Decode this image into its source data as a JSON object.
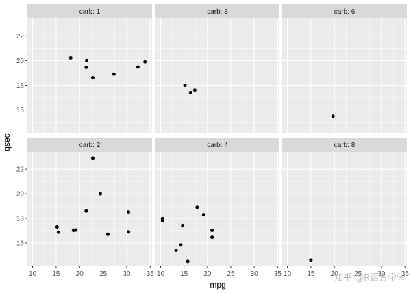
{
  "chart_data": {
    "type": "scatter",
    "facet_variable": "carb",
    "xlabel": "mpg",
    "ylabel": "qsec",
    "xlim": [
      8.9,
      35.4
    ],
    "ylim": [
      14.1,
      23.4
    ],
    "x_ticks": [
      10,
      15,
      20,
      25,
      30,
      35
    ],
    "y_ticks": [
      16,
      18,
      20,
      22
    ],
    "grid": true,
    "facets": [
      {
        "label": "carb: 1",
        "points": [
          {
            "x": 18.1,
            "y": 20.22
          },
          {
            "x": 21.4,
            "y": 19.44
          },
          {
            "x": 21.5,
            "y": 20.01
          },
          {
            "x": 22.8,
            "y": 18.61
          },
          {
            "x": 27.3,
            "y": 18.9
          },
          {
            "x": 32.4,
            "y": 19.47
          },
          {
            "x": 33.9,
            "y": 19.9
          }
        ]
      },
      {
        "label": "carb: 3",
        "points": [
          {
            "x": 15.2,
            "y": 18.0
          },
          {
            "x": 16.4,
            "y": 17.4
          },
          {
            "x": 17.3,
            "y": 17.6
          }
        ]
      },
      {
        "label": "carb: 6",
        "points": [
          {
            "x": 19.7,
            "y": 15.5
          }
        ]
      },
      {
        "label": "carb: 2",
        "points": [
          {
            "x": 15.2,
            "y": 17.3
          },
          {
            "x": 15.5,
            "y": 16.87
          },
          {
            "x": 18.7,
            "y": 17.02
          },
          {
            "x": 19.2,
            "y": 17.05
          },
          {
            "x": 21.4,
            "y": 18.6
          },
          {
            "x": 22.8,
            "y": 22.9
          },
          {
            "x": 24.4,
            "y": 20.0
          },
          {
            "x": 26.0,
            "y": 16.7
          },
          {
            "x": 30.4,
            "y": 16.9
          },
          {
            "x": 30.4,
            "y": 18.52
          }
        ]
      },
      {
        "label": "carb: 4",
        "points": [
          {
            "x": 10.4,
            "y": 17.98
          },
          {
            "x": 10.4,
            "y": 17.82
          },
          {
            "x": 13.3,
            "y": 15.41
          },
          {
            "x": 14.3,
            "y": 15.84
          },
          {
            "x": 14.7,
            "y": 17.42
          },
          {
            "x": 15.8,
            "y": 14.5
          },
          {
            "x": 17.8,
            "y": 18.9
          },
          {
            "x": 19.2,
            "y": 18.3
          },
          {
            "x": 21.0,
            "y": 16.46
          },
          {
            "x": 21.0,
            "y": 17.02
          }
        ]
      },
      {
        "label": "carb: 8",
        "points": [
          {
            "x": 15.0,
            "y": 14.6
          }
        ]
      }
    ]
  },
  "watermark": "知乎 @R语言学堂"
}
